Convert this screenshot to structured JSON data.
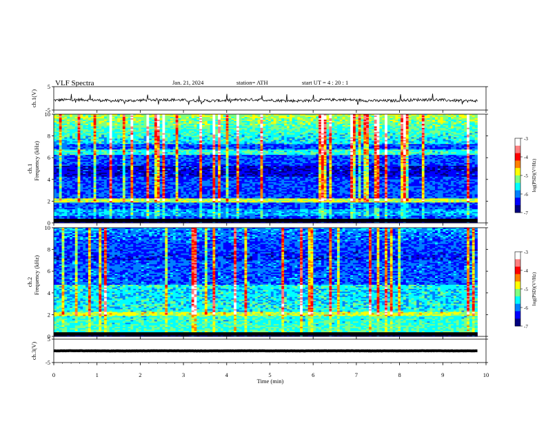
{
  "header": {
    "title": "VLF  Spectra",
    "date": "Jan. 21, 2024",
    "station": "station= ATH",
    "start": "start  UT  =   4  : 20 : 1"
  },
  "colorbar_label": "log(PSD)(V²/Hz)",
  "chart_data": [
    {
      "type": "line",
      "panel": "ch1-waveform",
      "ylabel": "ch.1(V)",
      "ylim": [
        -5,
        5
      ],
      "yticks": [
        5,
        -5
      ],
      "x_range_min": [
        0,
        9.8
      ],
      "baseline": -0.8,
      "noise_amplitude": 0.6
    },
    {
      "type": "heatmap",
      "panel": "ch1-spectrogram",
      "ylabel": "ch.1\nFrequency  (kHz)",
      "ylim": [
        0,
        10
      ],
      "yticks": [
        0,
        2,
        4,
        6,
        8,
        10
      ],
      "x_range_min": [
        0,
        9.8
      ],
      "colorbar": {
        "label": "log(PSD)(V²/Hz)",
        "range": [
          -7,
          -3
        ],
        "ticks": [
          -3,
          -4,
          -5,
          -6,
          -7
        ]
      }
    },
    {
      "type": "heatmap",
      "panel": "ch2-spectrogram",
      "ylabel": "ch.2\nFrequency  (kHz)",
      "ylim": [
        0,
        10
      ],
      "yticks": [
        0,
        2,
        4,
        6,
        8,
        10
      ],
      "x_range_min": [
        0,
        9.8
      ],
      "colorbar": {
        "label": "log(PSD)(V²/Hz)",
        "range": [
          -7,
          -3
        ],
        "ticks": [
          -3,
          -4,
          -5,
          -6,
          -7
        ]
      }
    },
    {
      "type": "line",
      "panel": "ch3-waveform",
      "ylabel": "ch.3(V)",
      "ylim": [
        -5,
        5
      ],
      "yticks": [
        5,
        -5
      ],
      "x_range_min": [
        0,
        9.8
      ],
      "baseline": 0.0,
      "noise_amplitude": 0.05
    }
  ],
  "xaxis": {
    "label": "Time  (min)",
    "range": [
      0,
      10
    ],
    "ticks": [
      0,
      1,
      2,
      3,
      4,
      5,
      6,
      7,
      8,
      9,
      10
    ]
  },
  "colormap": [
    "#00007f",
    "#0000ff",
    "#0080ff",
    "#00ffff",
    "#80ff80",
    "#ffff00",
    "#ff8000",
    "#ff0000",
    "#ff8080",
    "#ffffff"
  ]
}
